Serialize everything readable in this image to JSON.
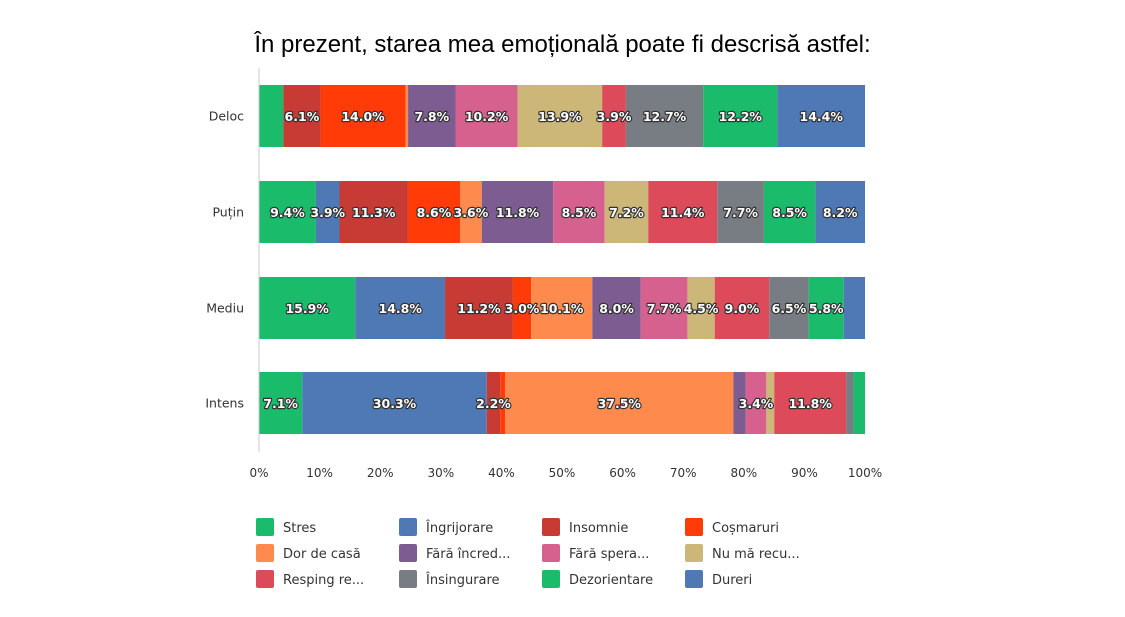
{
  "title": "În prezent, starea mea emoțională poate fi descrisă astfel:",
  "chart_data": {
    "type": "bar",
    "orientation": "horizontal",
    "stacked": "100%",
    "categories": [
      "Deloc",
      "Puțin",
      "Mediu",
      "Intens"
    ],
    "x_ticks": [
      "0%",
      "10%",
      "20%",
      "30%",
      "40%",
      "50%",
      "60%",
      "70%",
      "80%",
      "90%",
      "100%"
    ],
    "xlim": [
      0,
      100
    ],
    "grid": false,
    "legend_position": "bottom",
    "series": [
      {
        "name": "Stres",
        "color": "#1ABC6B",
        "values": [
          4.0,
          9.4,
          15.9,
          7.1
        ]
      },
      {
        "name": "Îngrijorare",
        "color": "#4E79B4",
        "values": [
          0.0,
          3.9,
          14.8,
          30.3
        ]
      },
      {
        "name": "Insomnie",
        "color": "#C83A34",
        "values": [
          6.1,
          11.3,
          11.2,
          2.2
        ]
      },
      {
        "name": "Coșmaruri",
        "color": "#FF3B08",
        "values": [
          14.0,
          8.6,
          3.0,
          0.8
        ]
      },
      {
        "name": "Dor de casă",
        "color": "#FF8A4D",
        "values": [
          0.4,
          3.6,
          10.1,
          37.5
        ]
      },
      {
        "name": "Fără încred...",
        "color": "#7C5C91",
        "values": [
          7.8,
          11.8,
          8.0,
          2.0
        ]
      },
      {
        "name": "Fără spera...",
        "color": "#D6618E",
        "values": [
          10.2,
          8.5,
          7.7,
          3.4
        ]
      },
      {
        "name": "Nu mă recu...",
        "color": "#CDB778",
        "values": [
          13.9,
          7.2,
          4.5,
          1.3
        ]
      },
      {
        "name": "Resping re...",
        "color": "#DD4B5A",
        "values": [
          3.9,
          11.4,
          9.0,
          11.8
        ]
      },
      {
        "name": "Însingurare",
        "color": "#787D84",
        "values": [
          12.7,
          7.7,
          6.5,
          1.2
        ]
      },
      {
        "name": "Dezorientare",
        "color": "#1ABC6B",
        "values": [
          12.2,
          8.5,
          5.8,
          1.9
        ]
      },
      {
        "name": "Dureri",
        "color": "#4E79B4",
        "values": [
          14.4,
          8.2,
          3.5,
          0.0
        ]
      }
    ],
    "data_labels": [
      {
        "row": 0,
        "series": 2,
        "text": "6.1%"
      },
      {
        "row": 0,
        "series": 3,
        "text": "14.0%"
      },
      {
        "row": 0,
        "series": 5,
        "text": "7.8%"
      },
      {
        "row": 0,
        "series": 6,
        "text": "10.2%"
      },
      {
        "row": 0,
        "series": 7,
        "text": "13.9%"
      },
      {
        "row": 0,
        "series": 8,
        "text": "3.9%"
      },
      {
        "row": 0,
        "series": 9,
        "text": "12.7%"
      },
      {
        "row": 0,
        "series": 10,
        "text": "12.2%"
      },
      {
        "row": 0,
        "series": 11,
        "text": "14.4%"
      },
      {
        "row": 1,
        "series": 0,
        "text": "9.4%"
      },
      {
        "row": 1,
        "series": 1,
        "text": "3.9%"
      },
      {
        "row": 1,
        "series": 2,
        "text": "11.3%"
      },
      {
        "row": 1,
        "series": 3,
        "text": "8.6%"
      },
      {
        "row": 1,
        "series": 4,
        "text": "3.6%"
      },
      {
        "row": 1,
        "series": 5,
        "text": "11.8%"
      },
      {
        "row": 1,
        "series": 6,
        "text": "8.5%"
      },
      {
        "row": 1,
        "series": 7,
        "text": "7.2%"
      },
      {
        "row": 1,
        "series": 8,
        "text": "11.4%"
      },
      {
        "row": 1,
        "series": 9,
        "text": "7.7%"
      },
      {
        "row": 1,
        "series": 10,
        "text": "8.5%"
      },
      {
        "row": 1,
        "series": 11,
        "text": "8.2%"
      },
      {
        "row": 2,
        "series": 0,
        "text": "15.9%"
      },
      {
        "row": 2,
        "series": 1,
        "text": "14.8%"
      },
      {
        "row": 2,
        "series": 2,
        "text": "11.2%"
      },
      {
        "row": 2,
        "series": 3,
        "text": "3.0%"
      },
      {
        "row": 2,
        "series": 4,
        "text": "10.1%"
      },
      {
        "row": 2,
        "series": 5,
        "text": "8.0%"
      },
      {
        "row": 2,
        "series": 6,
        "text": "7.7%"
      },
      {
        "row": 2,
        "series": 7,
        "text": "4.5%"
      },
      {
        "row": 2,
        "series": 8,
        "text": "9.0%"
      },
      {
        "row": 2,
        "series": 9,
        "text": "6.5%"
      },
      {
        "row": 2,
        "series": 10,
        "text": "5.8%"
      },
      {
        "row": 3,
        "series": 0,
        "text": "7.1%"
      },
      {
        "row": 3,
        "series": 1,
        "text": "30.3%"
      },
      {
        "row": 3,
        "series": 2,
        "text": "2.2%"
      },
      {
        "row": 3,
        "series": 4,
        "text": "37.5%"
      },
      {
        "row": 3,
        "series": 6,
        "text": "3.4%"
      },
      {
        "row": 3,
        "series": 8,
        "text": "11.8%"
      }
    ]
  }
}
